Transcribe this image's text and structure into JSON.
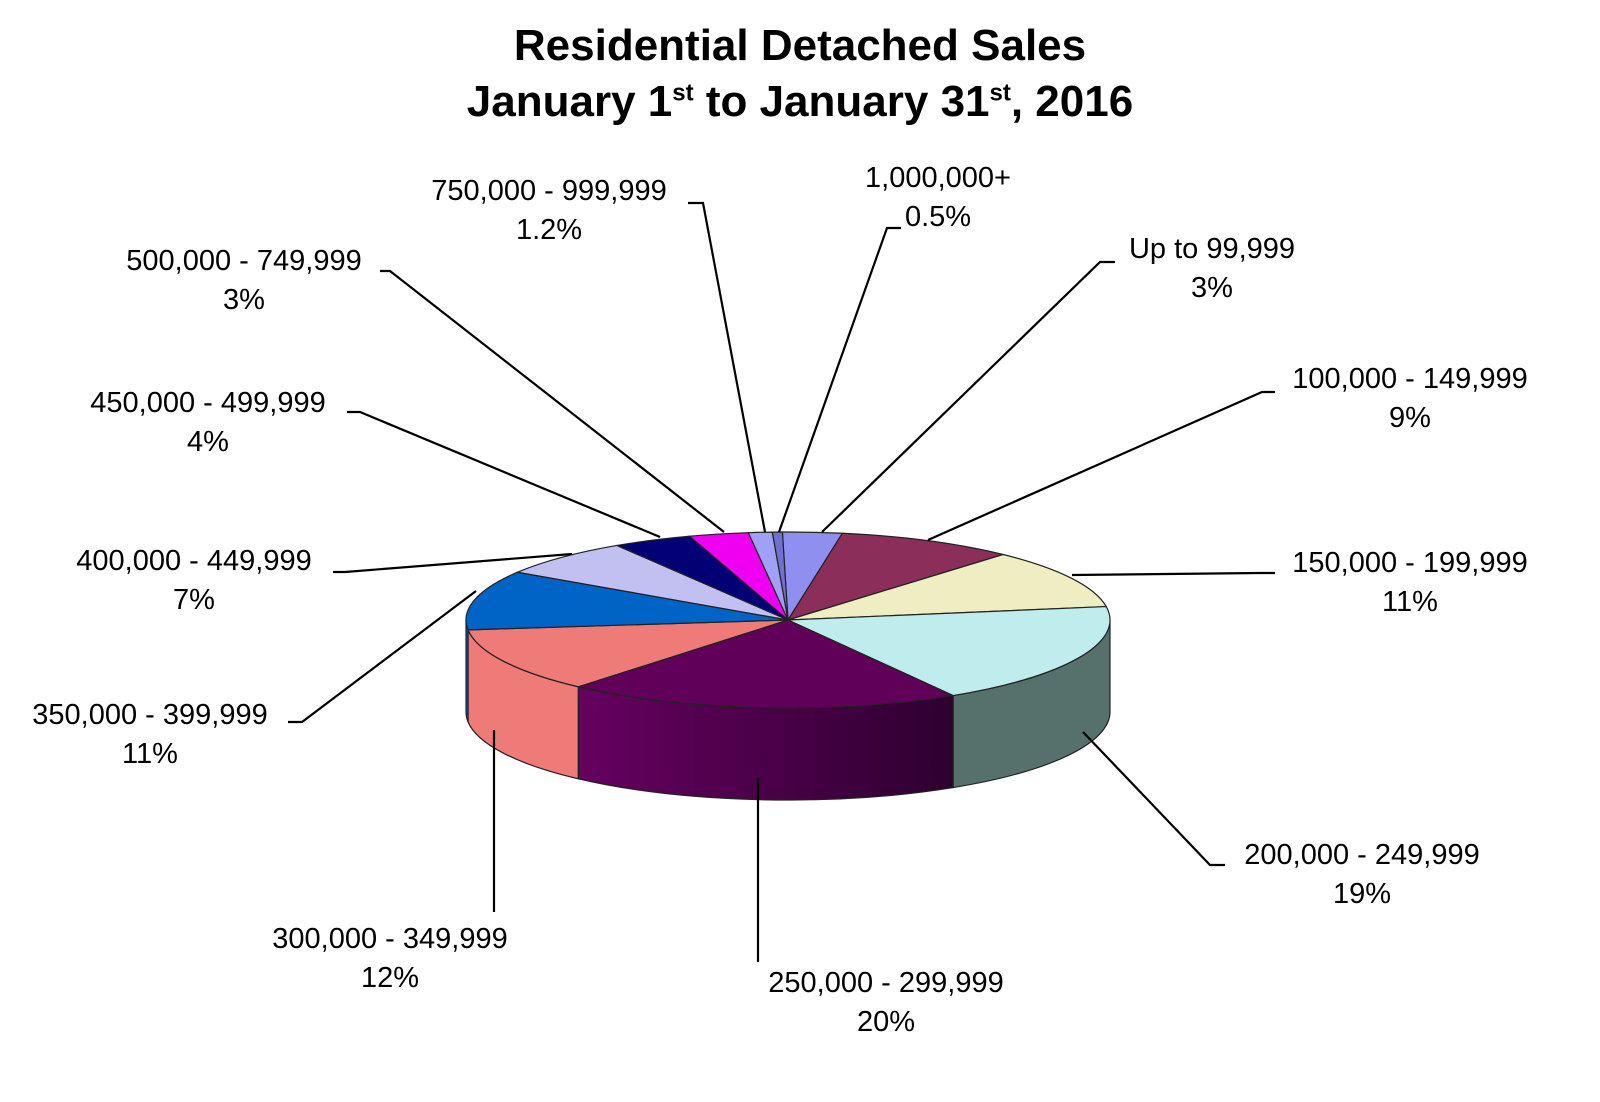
{
  "title": {
    "line1": "Residential Detached Sales",
    "line2": {
      "p1": "January 1",
      "s1": "st",
      "p2": " to January 31",
      "s2": "st",
      "p3": ", 2016"
    }
  },
  "chart_data": {
    "type": "pie",
    "style": "3d",
    "slices": [
      {
        "label": "Up to 99,999",
        "pct_label": "3%",
        "value": 3,
        "color": "#8f8ff0"
      },
      {
        "label": "100,000 - 149,999",
        "pct_label": "9%",
        "value": 9,
        "color": "#8b2f5a"
      },
      {
        "label": "150,000 - 199,999",
        "pct_label": "11%",
        "value": 11,
        "color": "#eeeec2"
      },
      {
        "label": "200,000 - 249,999",
        "pct_label": "19%",
        "value": 19,
        "color": "#bfeced"
      },
      {
        "label": "250,000 - 299,999",
        "pct_label": "20%",
        "value": 20,
        "color": "#600058"
      },
      {
        "label": "300,000 - 349,999",
        "pct_label": "12%",
        "value": 12,
        "color": "#ef7b78"
      },
      {
        "label": "350,000 - 399,999",
        "pct_label": "11%",
        "value": 11,
        "color": "#0063c6"
      },
      {
        "label": "400,000 - 449,999",
        "pct_label": "7%",
        "value": 7,
        "color": "#c2c0f0"
      },
      {
        "label": "450,000 - 499,999",
        "pct_label": "4%",
        "value": 4,
        "color": "#030075"
      },
      {
        "label": "500,000 - 749,999",
        "pct_label": "3%",
        "value": 3,
        "color": "#f000f0"
      },
      {
        "label": "750,000 - 999,999",
        "pct_label": "1.2%",
        "value": 1.2,
        "color": "#a0a0f4"
      },
      {
        "label": "1,000,000+",
        "pct_label": "0.5%",
        "value": 0.5,
        "color": "#7070d0"
      }
    ],
    "sides": [
      {
        "slice": "200,000 - 249,999",
        "color": "#56706c"
      },
      {
        "slice": "250,000 - 299,999",
        "color": "#4a0045"
      },
      {
        "slice": "300,000 - 349,999",
        "color": "#ee7b78"
      }
    ]
  }
}
